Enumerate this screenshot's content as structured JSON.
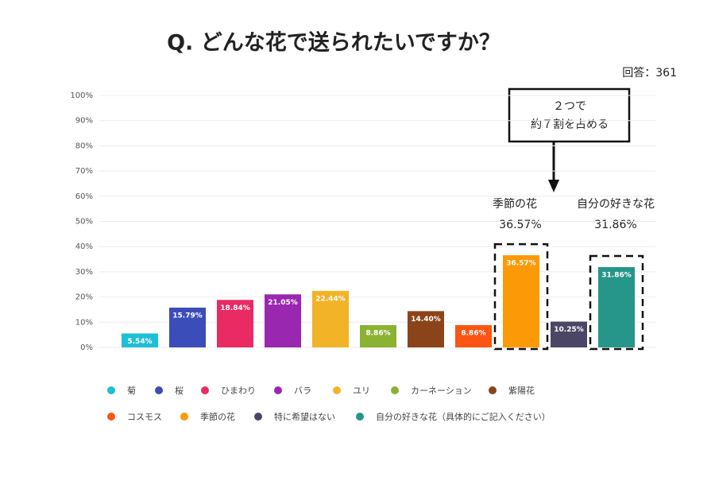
{
  "chart_data": {
    "type": "bar",
    "title": "Q. どんな花で送られたいですか？",
    "subtitle": "回答：361",
    "categories": [
      "菊",
      "桜",
      "ひまわり",
      "バラ",
      "ユリ",
      "カーネーション",
      "紫陽花",
      "コスモス",
      "季節の花",
      "特に希望はない",
      "自分の好きな花（具体的にご記入ください）"
    ],
    "values": [
      5.54,
      15.79,
      18.84,
      21.05,
      22.44,
      8.86,
      14.4,
      8.86,
      36.57,
      10.25,
      31.86
    ],
    "value_labels": [
      "5.54%",
      "15.79%",
      "18.84%",
      "21.05%",
      "22.44%",
      "8.86%",
      "14.40%",
      "8.86%",
      "36.57%",
      "10.25%",
      "31.86%"
    ],
    "colors": [
      "#1ebfd6",
      "#3b4db8",
      "#ea2a63",
      "#9a27b0",
      "#f2b327",
      "#8bb232",
      "#8b4419",
      "#fb5413",
      "#fb9a06",
      "#4b4665",
      "#27968a"
    ],
    "ylim": [
      0,
      100
    ],
    "yticks": [
      {
        "value": 0,
        "label": "0%"
      },
      {
        "value": 10,
        "label": "10%"
      },
      {
        "value": 20,
        "label": "20%"
      },
      {
        "value": 30,
        "label": "30%"
      },
      {
        "value": 40,
        "label": "40%"
      },
      {
        "value": 50,
        "label": "50%"
      },
      {
        "value": 60,
        "label": "60%"
      },
      {
        "value": 70,
        "label": "70%"
      },
      {
        "value": 80,
        "label": "80%"
      },
      {
        "value": 90,
        "label": "90%"
      },
      {
        "value": 100,
        "label": "100%"
      }
    ],
    "grid": true,
    "legend": "bottom",
    "callout": [
      "２つで",
      "約７割を占める"
    ],
    "annotations": [
      {
        "text": "季節の花"
      },
      {
        "text": "36.57%"
      },
      {
        "text": "自分の好きな花"
      },
      {
        "text": "31.86%"
      }
    ]
  }
}
